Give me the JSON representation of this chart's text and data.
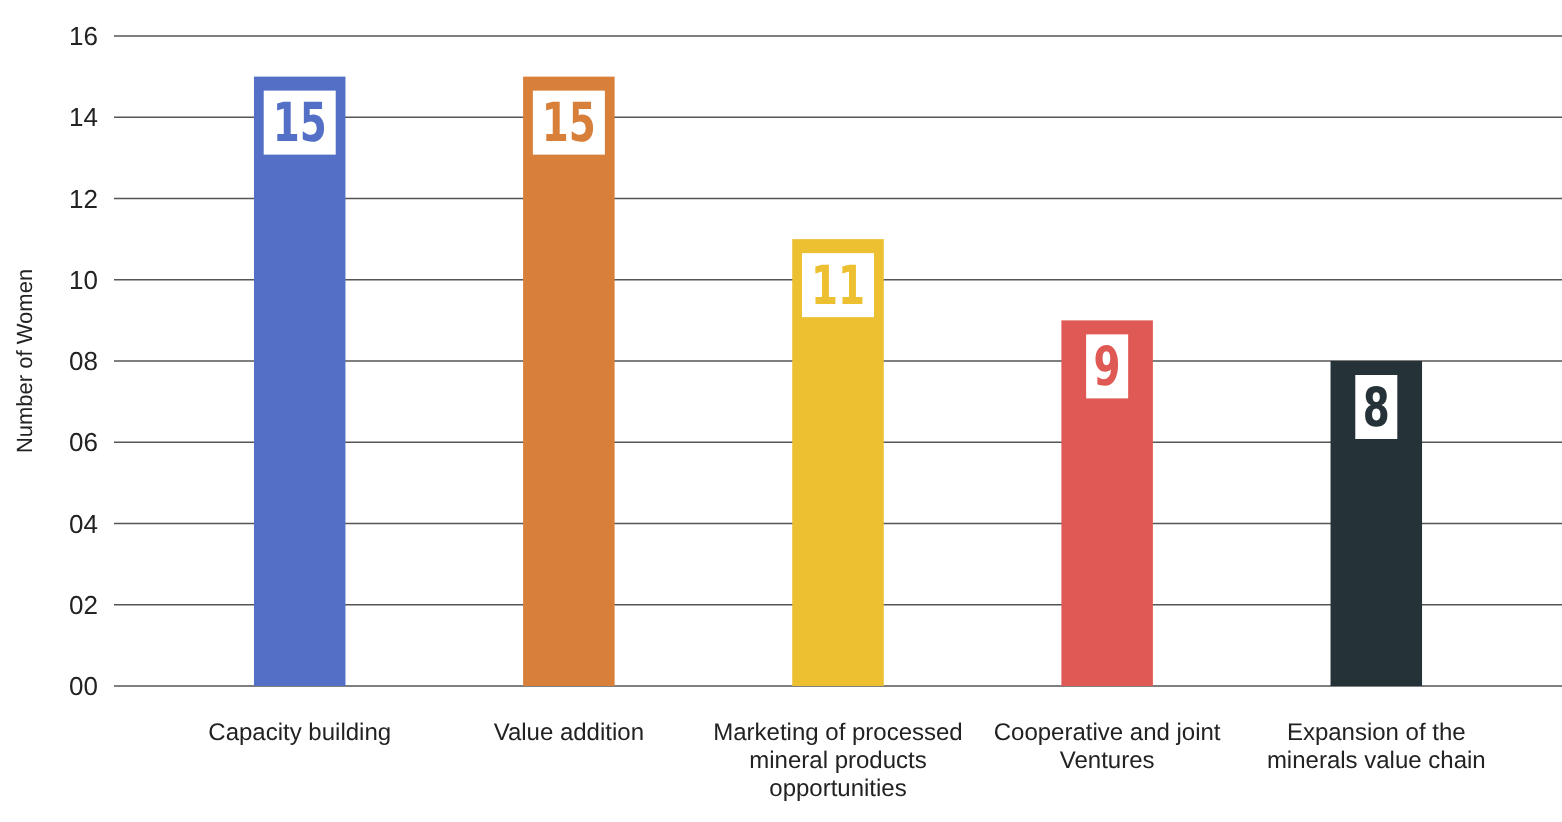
{
  "chart_data": {
    "type": "bar",
    "ylabel": "Number of Women",
    "categories": [
      "Capacity building",
      "Value addition",
      "Marketing of processed mineral  products opportunities",
      "Cooperative and joint Ventures",
      "Expansion of the minerals value chain"
    ],
    "values": [
      15,
      15,
      11,
      9,
      8
    ],
    "colors": [
      "#5470c6",
      "#d87f3a",
      "#ecc030",
      "#e05a55",
      "#253238"
    ],
    "ylim": [
      0,
      16
    ],
    "yticks": [
      {
        "value": 0,
        "label": "00"
      },
      {
        "value": 2,
        "label": "02"
      },
      {
        "value": 4,
        "label": "04"
      },
      {
        "value": 6,
        "label": "06"
      },
      {
        "value": 8,
        "label": "08"
      },
      10,
      12,
      14,
      16
    ],
    "grid": "y",
    "data_labels": true
  }
}
